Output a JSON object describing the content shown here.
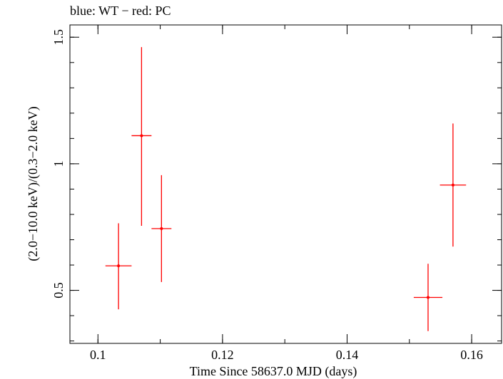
{
  "chart_data": {
    "type": "scatter",
    "title": "blue: WT − red: PC",
    "xlabel": "Time Since 58637.0 MJD (days)",
    "ylabel": "(2.0−10.0 keV)/(0.3−2.0 keV)",
    "xlim": [
      0.0955,
      0.1648
    ],
    "ylim": [
      0.2905,
      1.5485
    ],
    "x_ticks_major": [
      0.1,
      0.12,
      0.14,
      0.16
    ],
    "x_tick_labels": [
      "0.1",
      "0.12",
      "0.14",
      "0.16"
    ],
    "y_ticks_major": [
      0.5,
      1,
      1.5
    ],
    "y_tick_labels": [
      "0.5",
      "1",
      "1.5"
    ],
    "x_ticks_minor_step": 0.01,
    "y_ticks_minor_step": 0.1,
    "grid": false,
    "legend": "none",
    "series": [
      {
        "color": "#ff0000",
        "points": [
          {
            "x": 0.1033,
            "xerr": 0.0021,
            "y": 0.597,
            "yerr_low": 0.172,
            "yerr_high": 0.168
          },
          {
            "x": 0.107,
            "xerr": 0.0016,
            "y": 1.111,
            "yerr_low": 0.356,
            "yerr_high": 0.35
          },
          {
            "x": 0.1102,
            "xerr": 0.0016,
            "y": 0.744,
            "yerr_low": 0.211,
            "yerr_high": 0.211
          },
          {
            "x": 0.153,
            "xerr": 0.0023,
            "y": 0.472,
            "yerr_low": 0.133,
            "yerr_high": 0.133
          },
          {
            "x": 0.157,
            "xerr": 0.0021,
            "y": 0.916,
            "yerr_low": 0.243,
            "yerr_high": 0.243
          }
        ]
      }
    ]
  }
}
